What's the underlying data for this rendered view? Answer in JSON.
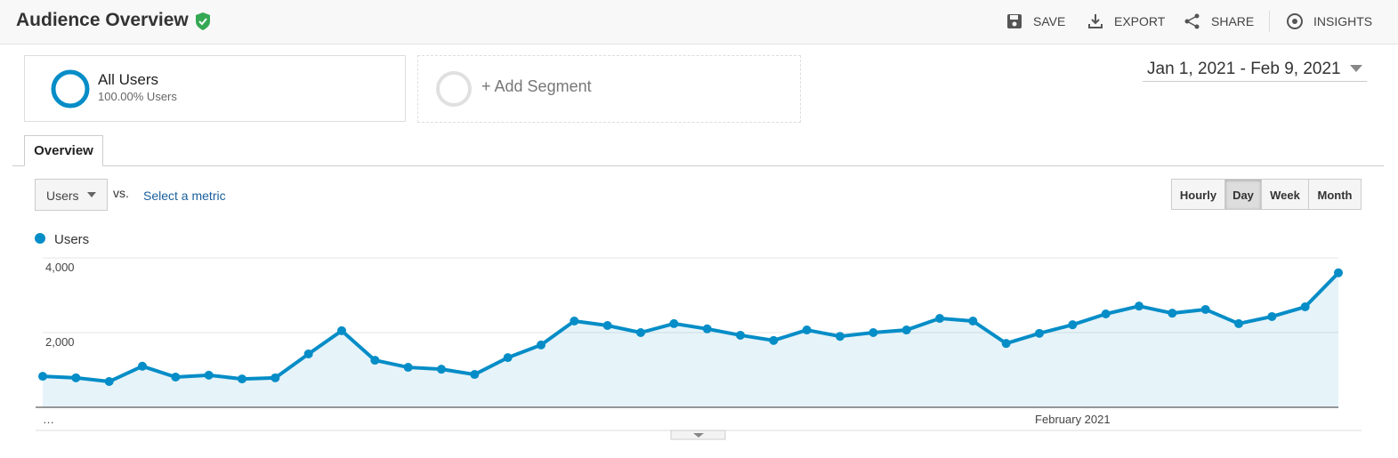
{
  "header": {
    "title": "Audience Overview",
    "actions": [
      "SAVE",
      "EXPORT",
      "SHARE",
      "INSIGHTS"
    ]
  },
  "segments": {
    "active": {
      "name": "All Users",
      "detail": "100.00% Users"
    },
    "add": "+ Add Segment"
  },
  "date_range": "Jan 1, 2021 - Feb 9, 2021",
  "tab": "Overview",
  "metric_selector": {
    "metric": "Users",
    "vs": "vs.",
    "link": "Select a metric"
  },
  "granularity": {
    "options": [
      "Hourly",
      "Day",
      "Week",
      "Month"
    ],
    "selected": "Day"
  },
  "chart_data": {
    "type": "line",
    "categories": [
      "…",
      null,
      null,
      null,
      null,
      null,
      null,
      null,
      null,
      null,
      null,
      null,
      null,
      null,
      null,
      null,
      null,
      null,
      null,
      null,
      null,
      null,
      null,
      null,
      null,
      null,
      null,
      null,
      null,
      null,
      null,
      "February 2021",
      null,
      null,
      null,
      null,
      null,
      null,
      null,
      null
    ],
    "series": [
      {
        "name": "Users",
        "color": "#058dc7",
        "values": [
          830,
          790,
          690,
          1100,
          810,
          860,
          760,
          790,
          1430,
          2050,
          1260,
          1070,
          1020,
          880,
          1330,
          1670,
          2310,
          2190,
          2000,
          2240,
          2100,
          1930,
          1790,
          2070,
          1900,
          2000,
          2070,
          2380,
          2310,
          1710,
          1980,
          2210,
          2500,
          2710,
          2520,
          2620,
          2240,
          2430,
          2690,
          3600
        ]
      }
    ],
    "ylim": [
      0,
      4000
    ],
    "yticks": [
      {
        "value": 2000,
        "label": "2,000"
      },
      {
        "value": 4000,
        "label": "4,000"
      }
    ],
    "grid": true,
    "area": true
  }
}
